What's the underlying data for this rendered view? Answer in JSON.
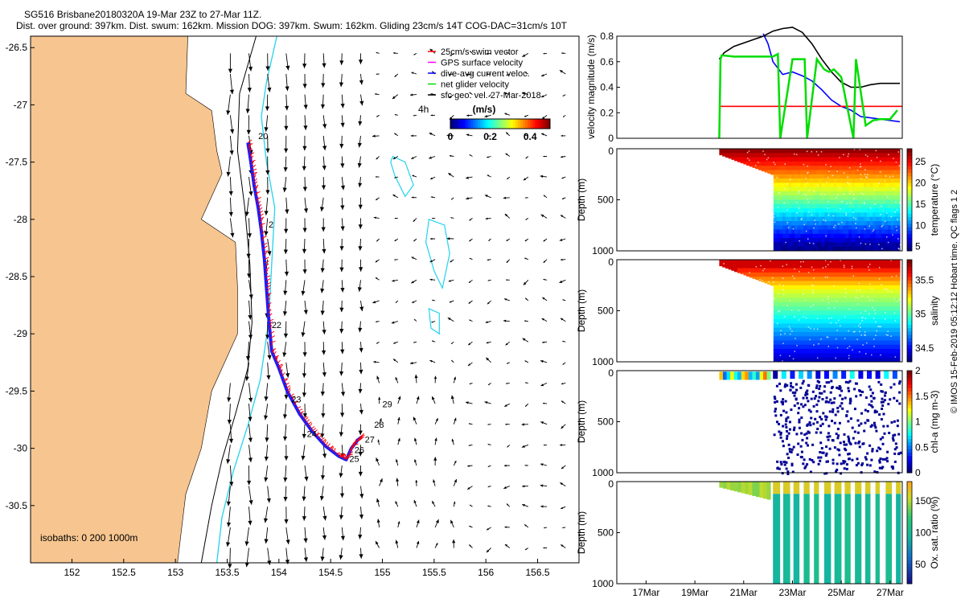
{
  "title": {
    "line1": "SG516 Brisbane20180320A 19-Mar 23Z to 27-Mar 11Z.",
    "line2": "Dist. over ground: 397km. Dist. swum: 162km. Mission DOG: 397km. Swum: 162km. Gliding 23cm/s 14T COG-DAC=31cm/s 10T"
  },
  "colors": {
    "land": "#f7c58f",
    "isobath200": "#000000",
    "isobath1000": "#22d3ee",
    "swim": "#ff0000",
    "gps": "#ff00ff",
    "dac": "#0000ff",
    "net": "#00dd00",
    "arrows": "#000000",
    "track_red": "#ff0000",
    "track_blue": "#1a1aff"
  },
  "side_label": "© IMOS 15-Feb-2019 05:12:12 Hobart time. QC flags 1  2",
  "chart_data": [
    {
      "id": "map",
      "type": "scatter",
      "xlim": [
        151.6,
        156.9
      ],
      "ylim": [
        -31.0,
        -26.4
      ],
      "xticks": [
        152,
        152.5,
        153,
        153.5,
        154,
        154.5,
        155,
        155.5,
        156,
        156.5
      ],
      "xtick_labels": [
        "152",
        "152.5",
        "153",
        "153.5",
        "154",
        "154.5",
        "155",
        "155.5",
        "156",
        "156.5"
      ],
      "yticks": [
        -26.5,
        -27,
        -27.5,
        -28,
        -28.5,
        -29,
        -29.5,
        -30,
        -30.5
      ],
      "ytick_labels": [
        "-26.5",
        "-27",
        "-27.5",
        "-28",
        "-28.5",
        "-29",
        "-29.5",
        "-30",
        "-30.5"
      ],
      "legend": [
        {
          "label": "25cm/s swim vector",
          "color": "#ff0000"
        },
        {
          "label": "GPS surface velocity",
          "color": "#ff00ff"
        },
        {
          "label": "dive-avg current veloc.",
          "color": "#0000ff"
        },
        {
          "label": "net glider velocity",
          "color": "#00dd00"
        },
        {
          "label": "sfc geo. vel. 27-Mar-2018",
          "color": "#000000"
        }
      ],
      "annotation_4h": "4h",
      "colorbar": {
        "label": "(m/s)",
        "ticks": [
          0,
          0.2,
          0.4
        ],
        "tick_labels": [
          "0",
          "0.2",
          "0.4"
        ],
        "range": [
          0,
          0.5
        ]
      },
      "isobaths_label": "isobaths: 0   200  1000m",
      "track": [
        [
          153.7,
          -27.33
        ],
        [
          153.73,
          -27.5
        ],
        [
          153.76,
          -27.7
        ],
        [
          153.8,
          -27.9
        ],
        [
          153.83,
          -28.1
        ],
        [
          153.86,
          -28.35
        ],
        [
          153.88,
          -28.6
        ],
        [
          153.9,
          -28.85
        ],
        [
          153.93,
          -29.15
        ],
        [
          154.0,
          -29.3
        ],
        [
          154.08,
          -29.5
        ],
        [
          154.2,
          -29.7
        ],
        [
          154.32,
          -29.85
        ],
        [
          154.45,
          -29.98
        ],
        [
          154.58,
          -30.07
        ],
        [
          154.65,
          -30.1
        ],
        [
          154.7,
          -30.0
        ],
        [
          154.76,
          -29.93
        ],
        [
          154.8,
          -29.9
        ]
      ],
      "day_labels": [
        {
          "text": "20",
          "lon": 153.8,
          "lat": -27.3
        },
        {
          "text": "2",
          "lon": 153.9,
          "lat": -28.07
        },
        {
          "text": "22",
          "lon": 153.93,
          "lat": -28.95
        },
        {
          "text": "23",
          "lon": 154.12,
          "lat": -29.6
        },
        {
          "text": "24",
          "lon": 154.27,
          "lat": -29.9
        },
        {
          "text": "25",
          "lon": 154.68,
          "lat": -30.12
        },
        {
          "text": "26",
          "lon": 154.73,
          "lat": -30.04
        },
        {
          "text": "27",
          "lon": 154.83,
          "lat": -29.95
        },
        {
          "text": "28",
          "lon": 154.92,
          "lat": -29.82
        },
        {
          "text": "29",
          "lon": 155.0,
          "lat": -29.64
        }
      ]
    },
    {
      "id": "velocity",
      "type": "line",
      "ylabel": "velocity magnitude (m/s)",
      "ylim": [
        0,
        0.8
      ],
      "yticks": [
        0,
        0.2,
        0.4,
        0.6,
        0.8
      ],
      "ytick_labels": [
        "0",
        "0.2",
        "0.4",
        "0.6",
        "0.8"
      ],
      "xlim": [
        15.8,
        27.5
      ],
      "series": [
        {
          "name": "total",
          "color": "#000000",
          "x": [
            20.0,
            20.2,
            20.6,
            21.2,
            21.8,
            22.2,
            22.6,
            23.0,
            23.4,
            23.8,
            24.2,
            24.6,
            25.0,
            25.4,
            25.8,
            26.2,
            26.6,
            27.0,
            27.4
          ],
          "y": [
            0.62,
            0.67,
            0.72,
            0.76,
            0.8,
            0.84,
            0.86,
            0.87,
            0.83,
            0.74,
            0.62,
            0.52,
            0.44,
            0.4,
            0.4,
            0.42,
            0.43,
            0.43,
            0.43
          ]
        },
        {
          "name": "dac",
          "color": "#0000ff",
          "x": [
            21.8,
            22.0,
            22.2,
            22.6,
            23.0,
            23.4,
            23.8,
            24.2,
            24.6,
            25.0,
            25.4,
            25.8,
            26.2,
            26.6,
            27.0,
            27.4
          ],
          "y": [
            0.82,
            0.74,
            0.6,
            0.5,
            0.52,
            0.49,
            0.45,
            0.38,
            0.3,
            0.25,
            0.22,
            0.17,
            0.16,
            0.15,
            0.14,
            0.13
          ]
        },
        {
          "name": "swim",
          "color": "#ff0000",
          "x": [
            20.0,
            27.5
          ],
          "y": [
            0.25,
            0.25
          ]
        },
        {
          "name": "net",
          "color": "#00dd00",
          "x": [
            20.0,
            20.05,
            20.1,
            20.6,
            21.2,
            21.8,
            22.2,
            22.4,
            22.5,
            23.0,
            23.5,
            23.6,
            24.0,
            24.3,
            24.5,
            24.7,
            25.0,
            25.5,
            25.6,
            26.0,
            26.3,
            26.6,
            27.0,
            27.3
          ],
          "y": [
            0.0,
            0.62,
            0.65,
            0.64,
            0.64,
            0.64,
            0.64,
            0.66,
            0.0,
            0.62,
            0.62,
            0.0,
            0.62,
            0.54,
            0.52,
            0.54,
            0.48,
            0.0,
            0.62,
            0.1,
            0.14,
            0.15,
            0.15,
            0.22
          ]
        }
      ]
    },
    {
      "id": "temperature",
      "type": "heatmap",
      "ylabel": "Depth (m)",
      "cbar_label": "temperature (°C)",
      "cbar_ticks": [
        5,
        10,
        15,
        20,
        25
      ],
      "cbar_tick_labels": [
        "5",
        "10",
        "15",
        "20",
        "25"
      ],
      "range": [
        4,
        28
      ],
      "ylim": [
        0,
        1000
      ],
      "yticks": [
        0,
        500,
        1000
      ],
      "ytick_labels": [
        "0",
        "500",
        "1000"
      ]
    },
    {
      "id": "salinity",
      "type": "heatmap",
      "ylabel": "Depth (m)",
      "cbar_label": "salinity",
      "cbar_ticks": [
        34.5,
        35,
        35.5
      ],
      "cbar_tick_labels": [
        "34.5",
        "35",
        "35.5"
      ],
      "range": [
        34.3,
        35.8
      ],
      "ylim": [
        0,
        1000
      ],
      "yticks": [
        0,
        500,
        1000
      ],
      "ytick_labels": [
        "0",
        "500",
        "1000"
      ]
    },
    {
      "id": "chla",
      "type": "heatmap",
      "ylabel": "Depth (m)",
      "cbar_label": "chl-a (mg m-3)",
      "cbar_ticks": [
        0,
        0.5,
        1,
        1.5,
        2
      ],
      "cbar_tick_labels": [
        "0",
        "0.5",
        "1",
        "1.5",
        "2"
      ],
      "range": [
        0,
        2
      ],
      "ylim": [
        0,
        1000
      ],
      "yticks": [
        0,
        500,
        1000
      ],
      "ytick_labels": [
        "0",
        "500",
        "1000"
      ]
    },
    {
      "id": "oxygen",
      "type": "heatmap",
      "ylabel": "Depth (m)",
      "cbar_label": "Ox. sat. ratio (%)",
      "cbar_ticks": [
        50,
        100,
        150
      ],
      "cbar_tick_labels": [
        "50",
        "100",
        "150"
      ],
      "range": [
        20,
        180
      ],
      "ylim": [
        0,
        1000
      ],
      "yticks": [
        0,
        500,
        1000
      ],
      "ytick_labels": [
        "0",
        "500",
        "1000"
      ],
      "xticks": [
        17,
        19,
        21,
        23,
        25,
        27
      ],
      "xtick_labels": [
        "17Mar",
        "19Mar",
        "21Mar",
        "23Mar",
        "25Mar",
        "27Mar"
      ]
    }
  ]
}
